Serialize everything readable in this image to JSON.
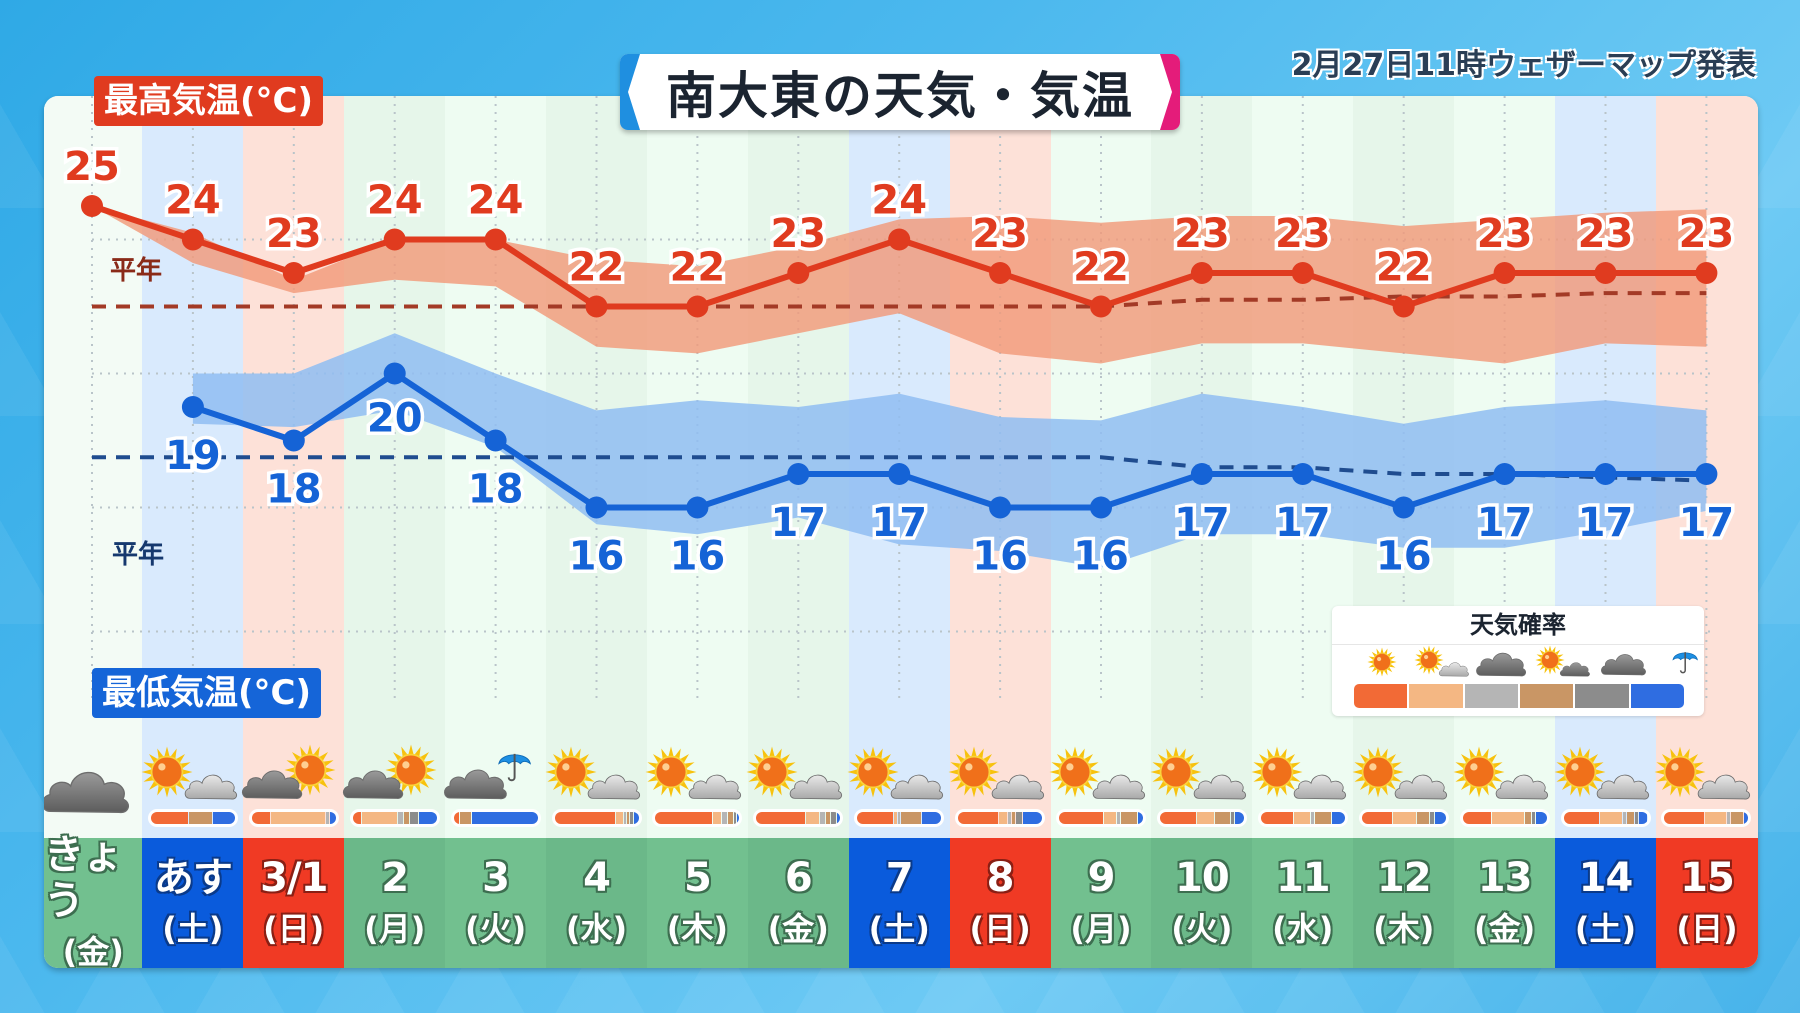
{
  "header": {
    "title": "南大東の天気・気温",
    "issued": "2月27日11時ウェザーマップ発表"
  },
  "labels": {
    "high_title": "最高気温(°C)",
    "low_title": "最低気温(°C)",
    "normal_high": "平年",
    "normal_low": "平年"
  },
  "legend": {
    "title": "天気確率",
    "items": [
      {
        "icon": "sunny-icon",
        "label": "晴れ",
        "color": "#f26a36"
      },
      {
        "icon": "sun-cloud-icon",
        "label": "晴れ時々曇り",
        "color": "#f4b783"
      },
      {
        "icon": "cloudy-icon",
        "label": "曇り",
        "color": "#b5b5b5"
      },
      {
        "icon": "sun-behind-cloud-icon",
        "label": "晴れ一時曇り",
        "color": "#c99665"
      },
      {
        "icon": "dark-cloud-icon",
        "label": "厚い曇り",
        "color": "#8c8c8c"
      },
      {
        "icon": "umbrella-icon",
        "label": "雨",
        "color": "#2f6de1"
      }
    ]
  },
  "colors": {
    "high_line": "#e03b1f",
    "high_band": "#f29a7a",
    "low_line": "#1563d6",
    "low_band": "#8fbdf2",
    "normal_high_line": "#a33a26",
    "normal_low_line": "#1f4c8f",
    "weekday": "#72c08f",
    "saturday": "#0a5bdc",
    "sunday": "#f03a24"
  },
  "days": [
    {
      "d1": "きょう",
      "d2": "(金)",
      "type": "today",
      "icon": "cloudy-icon"
    },
    {
      "d1": "あす",
      "d2": "(土)",
      "type": "sat",
      "icon": "sun-cloud-icon"
    },
    {
      "d1": "3/1",
      "d2": "(日)",
      "type": "sun",
      "icon": "cloud-sun-icon"
    },
    {
      "d1": "2",
      "d2": "(月)",
      "type": "wd",
      "icon": "cloud-sun-icon"
    },
    {
      "d1": "3",
      "d2": "(火)",
      "type": "wd",
      "icon": "cloud-umbrella-icon"
    },
    {
      "d1": "4",
      "d2": "(水)",
      "type": "wd",
      "icon": "sun-cloud-icon"
    },
    {
      "d1": "5",
      "d2": "(木)",
      "type": "wd",
      "icon": "sun-cloud-icon"
    },
    {
      "d1": "6",
      "d2": "(金)",
      "type": "wd",
      "icon": "sun-cloud-icon"
    },
    {
      "d1": "7",
      "d2": "(土)",
      "type": "sat",
      "icon": "sun-cloud-icon"
    },
    {
      "d1": "8",
      "d2": "(日)",
      "type": "sun",
      "icon": "sun-cloud-icon"
    },
    {
      "d1": "9",
      "d2": "(月)",
      "type": "wd",
      "icon": "sun-cloud-icon"
    },
    {
      "d1": "10",
      "d2": "(火)",
      "type": "wd",
      "icon": "sun-cloud-icon"
    },
    {
      "d1": "11",
      "d2": "(水)",
      "type": "wd",
      "icon": "sun-cloud-icon"
    },
    {
      "d1": "12",
      "d2": "(木)",
      "type": "wd",
      "icon": "sun-cloud-icon"
    },
    {
      "d1": "13",
      "d2": "(金)",
      "type": "wd",
      "icon": "sun-cloud-icon"
    },
    {
      "d1": "14",
      "d2": "(土)",
      "type": "sat",
      "icon": "sun-cloud-icon"
    },
    {
      "d1": "15",
      "d2": "(日)",
      "type": "sun",
      "icon": "sun-cloud-icon"
    }
  ],
  "prob_bars": [
    null,
    [
      45,
      0,
      0,
      28,
      0,
      27
    ],
    [
      20,
      60,
      4,
      0,
      0,
      6
    ],
    [
      10,
      45,
      6,
      6,
      10,
      23
    ],
    [
      6,
      0,
      0,
      14,
      0,
      80
    ],
    [
      77,
      8,
      3,
      3,
      3,
      6
    ],
    [
      72,
      10,
      6,
      6,
      3,
      3
    ],
    [
      62,
      16,
      6,
      6,
      6,
      4
    ],
    [
      45,
      3,
      3,
      25,
      0,
      24
    ],
    [
      50,
      10,
      4,
      4,
      8,
      24
    ],
    [
      55,
      15,
      4,
      20,
      0,
      6
    ],
    [
      45,
      22,
      0,
      18,
      4,
      11
    ],
    [
      40,
      20,
      4,
      20,
      0,
      16
    ],
    [
      38,
      28,
      0,
      16,
      4,
      14
    ],
    [
      35,
      40,
      0,
      8,
      4,
      13
    ],
    [
      45,
      28,
      4,
      8,
      4,
      11
    ],
    [
      50,
      26,
      4,
      14,
      0,
      6
    ]
  ],
  "chart_data": {
    "type": "line",
    "title": "南大東の天気・気温",
    "categories": [
      "きょう(金)",
      "あす(土)",
      "3/1(日)",
      "2(月)",
      "3(火)",
      "4(水)",
      "5(木)",
      "6(金)",
      "7(土)",
      "8(日)",
      "9(月)",
      "10(火)",
      "11(水)",
      "12(木)",
      "13(金)",
      "14(土)",
      "15(日)"
    ],
    "series": [
      {
        "name": "最高気温(°C)",
        "values": [
          25,
          24,
          23,
          24,
          24,
          22,
          22,
          23,
          24,
          23,
          22,
          23,
          23,
          22,
          23,
          23,
          23
        ]
      },
      {
        "name": "最低気温(°C)",
        "values": [
          null,
          19,
          18,
          20,
          18,
          16,
          16,
          17,
          17,
          16,
          16,
          17,
          17,
          16,
          17,
          17,
          17
        ]
      },
      {
        "name": "最高気温 平年",
        "values": [
          22,
          22,
          22,
          22,
          22,
          22,
          22,
          22,
          22,
          22,
          22,
          22.2,
          22.2,
          22.3,
          22.3,
          22.4,
          22.4
        ]
      },
      {
        "name": "最低気温 平年",
        "values": [
          17.5,
          17.5,
          17.5,
          17.5,
          17.5,
          17.5,
          17.5,
          17.5,
          17.5,
          17.5,
          17.5,
          17.2,
          17.2,
          17.0,
          17.0,
          16.9,
          16.8
        ]
      }
    ],
    "ranges": {
      "high_upper": [
        null,
        null,
        22.8,
        24,
        24,
        23.4,
        23.2,
        23.8,
        24.6,
        24.7,
        24.5,
        24.7,
        24.7,
        24.4,
        24.6,
        24.8,
        24.9
      ],
      "high_lower": [
        25,
        23.3,
        22.4,
        22.8,
        22.6,
        20.8,
        20.6,
        21.2,
        21.8,
        20.6,
        20.3,
        20.9,
        20.9,
        20.6,
        20.3,
        20.9,
        20.8
      ],
      "low_upper": [
        null,
        20,
        20,
        21.2,
        20,
        18.9,
        19.2,
        19.0,
        19.4,
        18.7,
        18.6,
        19.4,
        19.0,
        18.5,
        19.0,
        19.2,
        18.9
      ],
      "low_lower": [
        null,
        18.5,
        18.4,
        18.9,
        17.8,
        15.5,
        15.2,
        15.7,
        14.9,
        14.7,
        14.2,
        15.2,
        15.2,
        14.8,
        14.8,
        15.3,
        15.9
      ]
    },
    "xlabel": "",
    "ylabel": "気温(°C)",
    "ylim": [
      13,
      26
    ],
    "grid": true,
    "legend_position": "bottom-right"
  }
}
